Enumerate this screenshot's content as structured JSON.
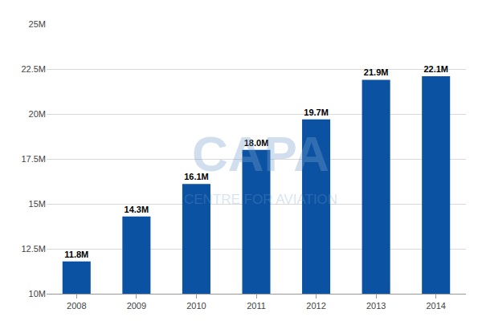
{
  "chart_data": {
    "type": "bar",
    "categories": [
      "2008",
      "2009",
      "2010",
      "2011",
      "2012",
      "2013",
      "2014"
    ],
    "values": [
      11.8,
      14.3,
      16.1,
      18.0,
      19.7,
      21.9,
      22.1
    ],
    "value_labels": [
      "11.8M",
      "14.3M",
      "16.1M",
      "18.0M",
      "19.7M",
      "21.9M",
      "22.1M"
    ],
    "color": "#0b52a2",
    "ylim": [
      10,
      25
    ],
    "yticks": [
      {
        "value": 10,
        "label": "10M"
      },
      {
        "value": 12.5,
        "label": "12.5M"
      },
      {
        "value": 15,
        "label": "15M"
      },
      {
        "value": 17.5,
        "label": "17.5M"
      },
      {
        "value": 20,
        "label": "20M"
      },
      {
        "value": 22.5,
        "label": "22.5M"
      },
      {
        "value": 25,
        "label": "25M"
      }
    ],
    "grid": true,
    "data_labels": true,
    "annotations": [
      "CAPA",
      "CENTRE FOR AVIATION"
    ]
  }
}
